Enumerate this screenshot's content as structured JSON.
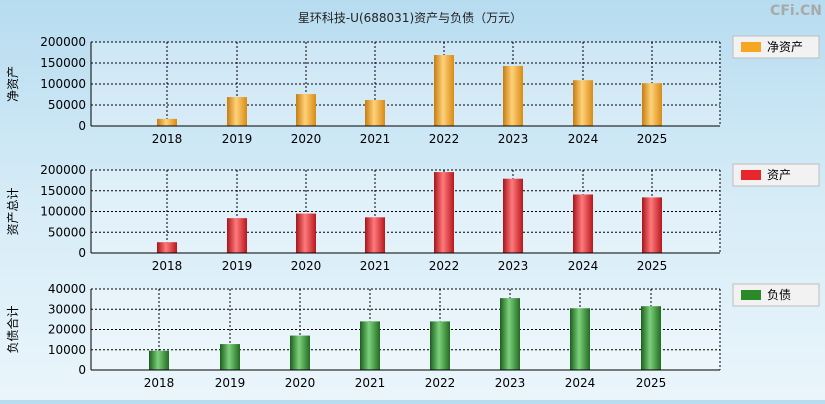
{
  "title": "星环科技-U(688031)资产与负债（万元）",
  "watermark": "CFi.CN",
  "chart_data": [
    {
      "type": "bar",
      "ylabel": "净资产",
      "legend": "净资产",
      "color": "#f5a623",
      "categories": [
        "2018",
        "2019",
        "2020",
        "2021",
        "2022",
        "2023",
        "2024",
        "2025"
      ],
      "values": [
        17000,
        69000,
        76000,
        62000,
        169000,
        143000,
        109000,
        102000
      ],
      "ylim": [
        0,
        200000
      ],
      "yticks": [
        "0",
        "50000",
        "100000",
        "150000",
        "200000"
      ],
      "grid": true,
      "legend_position": "right"
    },
    {
      "type": "bar",
      "ylabel": "资产总计",
      "legend": "资产",
      "color": "#e8262b",
      "categories": [
        "2018",
        "2019",
        "2020",
        "2021",
        "2022",
        "2023",
        "2024",
        "2025"
      ],
      "values": [
        26000,
        84000,
        95000,
        86000,
        195000,
        179000,
        141000,
        134000
      ],
      "ylim": [
        0,
        200000
      ],
      "yticks": [
        "0",
        "50000",
        "100000",
        "150000",
        "200000"
      ],
      "grid": true,
      "legend_position": "right"
    },
    {
      "type": "bar",
      "ylabel": "负债合计",
      "legend": "负债",
      "color": "#2a8a2a",
      "categories": [
        "2018",
        "2019",
        "2020",
        "2021",
        "2022",
        "2023",
        "2024",
        "2025"
      ],
      "values": [
        9500,
        12800,
        17000,
        24000,
        24000,
        35500,
        30500,
        31500
      ],
      "ylim": [
        0,
        40000
      ],
      "yticks": [
        "0",
        "10000",
        "20000",
        "30000",
        "40000"
      ],
      "grid": true,
      "legend_position": "right"
    }
  ]
}
